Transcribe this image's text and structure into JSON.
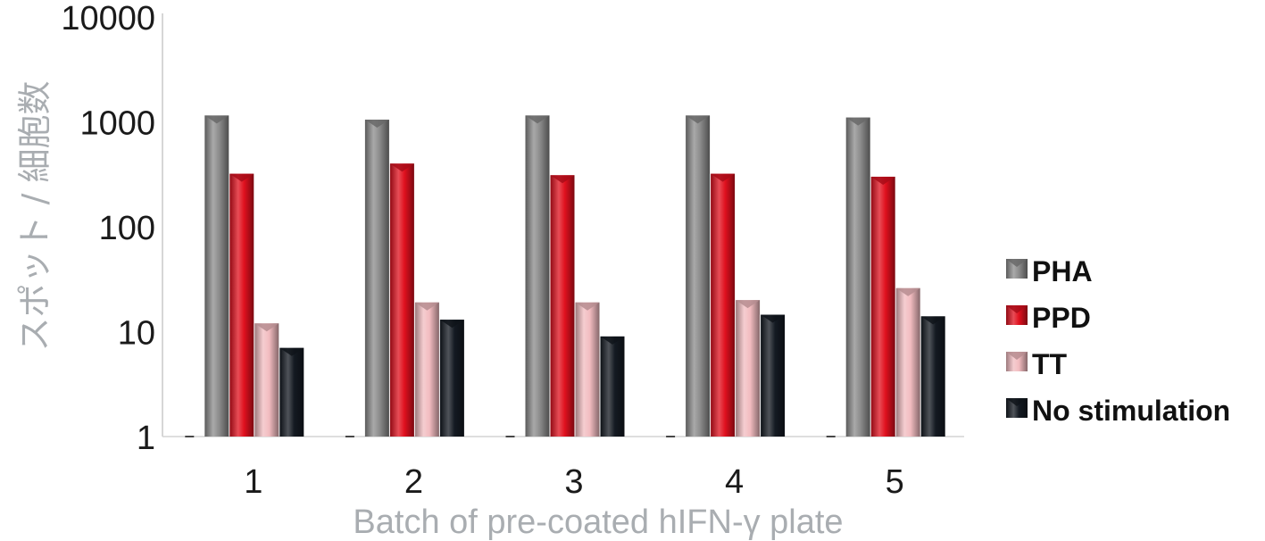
{
  "chart_data": {
    "type": "bar",
    "xlabel": "Batch of pre-coated hIFN-γ plate",
    "ylabel": "スポット / 細胞数",
    "yscale": "log",
    "ylim": [
      1,
      10000
    ],
    "yticks": [
      "1",
      "10",
      "100",
      "1000",
      "10000"
    ],
    "categories": [
      "1",
      "2",
      "3",
      "4",
      "5"
    ],
    "grid": false,
    "legend_position": "right",
    "series": [
      {
        "name": "PHA",
        "color": "#8c8c8c",
        "values": [
          1150,
          1050,
          1150,
          1150,
          1100
        ]
      },
      {
        "name": "PPD",
        "color": "#e0101e",
        "values": [
          320,
          400,
          310,
          320,
          300
        ]
      },
      {
        "name": "TT",
        "color": "#f2bcc0",
        "values": [
          12,
          19,
          19,
          20,
          26
        ]
      },
      {
        "name": "No stimulation",
        "color": "#141a22",
        "values": [
          7,
          13,
          9,
          14.5,
          14
        ]
      }
    ]
  }
}
